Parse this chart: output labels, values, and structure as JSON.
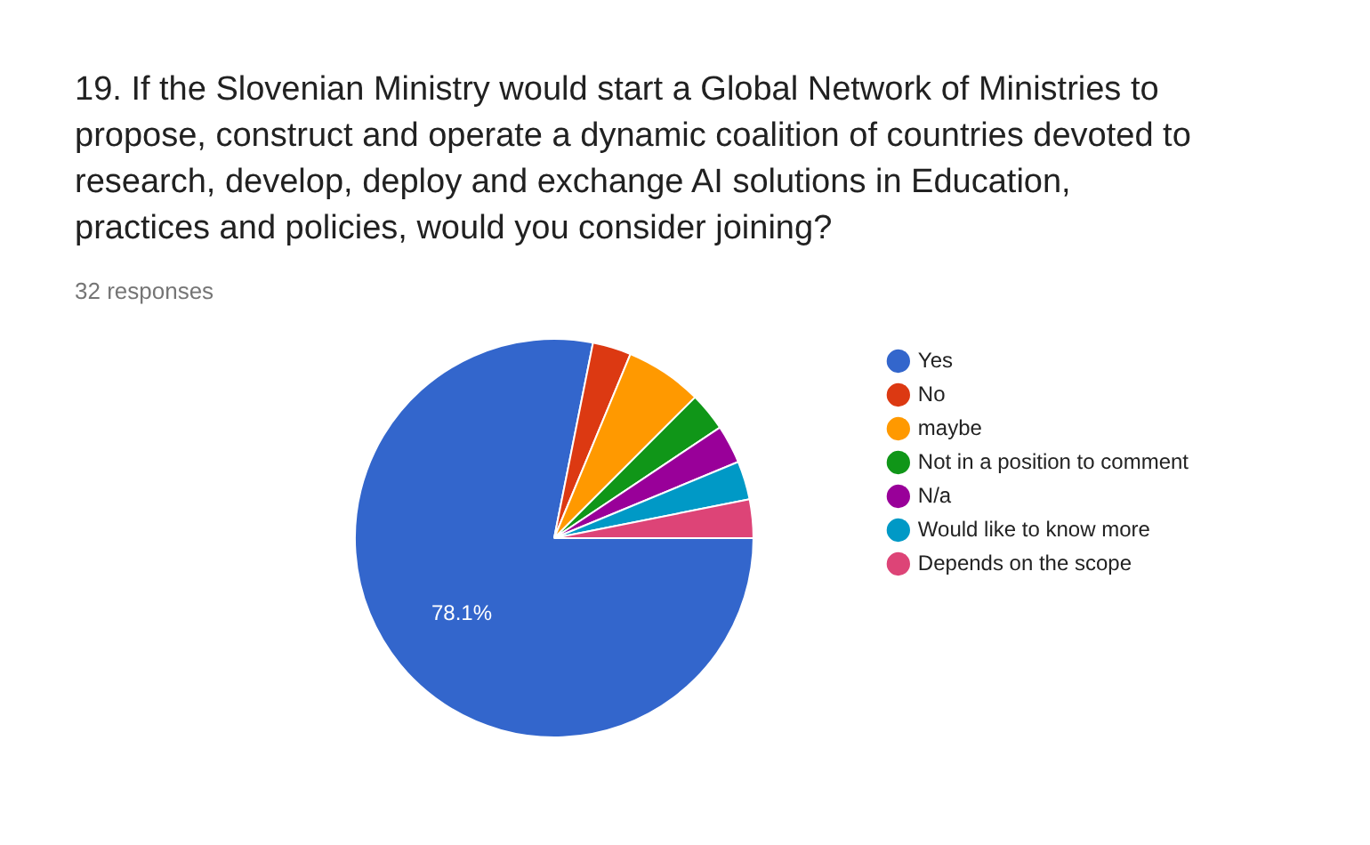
{
  "chart_data": {
    "type": "pie",
    "title": "19. If the Slovenian Ministry would start a Global Network of Ministries to propose, construct and operate a dynamic coalition of countries devoted to research, develop, deploy and exchange AI solutions in Education, practices and policies, would you consider joining?",
    "subtitle": "32 responses",
    "categories": [
      "Yes",
      "No",
      "maybe",
      "Not in a position to comment",
      "N/a",
      "Would like to know more",
      "Depends on the scope"
    ],
    "values": [
      78.125,
      3.125,
      6.25,
      3.125,
      3.125,
      3.125,
      3.125
    ],
    "colors": [
      "#3366cc",
      "#dc3912",
      "#ff9900",
      "#109618",
      "#990099",
      "#0099c6",
      "#dd4477"
    ],
    "value_labels": [
      "78.1%",
      null,
      null,
      null,
      null,
      null,
      null
    ],
    "legend": "right"
  }
}
